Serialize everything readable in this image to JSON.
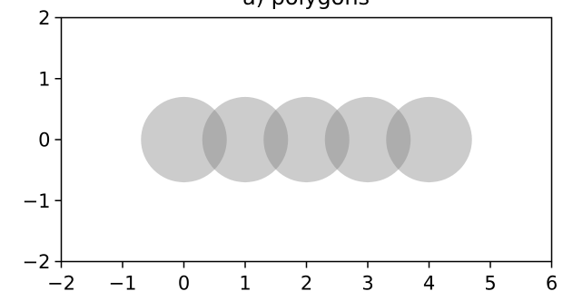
{
  "chart_data": {
    "type": "scatter",
    "title": "a) polygons",
    "xlabel": "",
    "ylabel": "",
    "xlim": [
      -2,
      6
    ],
    "ylim": [
      -2,
      2
    ],
    "x_ticks": [
      -2,
      -1,
      0,
      1,
      2,
      3,
      4,
      5,
      6
    ],
    "y_ticks": [
      -2,
      -1,
      0,
      1,
      2
    ],
    "x_tick_labels": [
      "−2",
      "−1",
      "0",
      "1",
      "2",
      "3",
      "4",
      "5",
      "6"
    ],
    "y_tick_labels": [
      "−2",
      "−1",
      "0",
      "1",
      "2"
    ],
    "grid": false,
    "series": [
      {
        "shape": "circle",
        "radius": 0.7,
        "color": "#808080",
        "alpha": 0.4,
        "x": [
          0,
          1,
          2,
          3,
          4
        ],
        "y": [
          0,
          0,
          0,
          0,
          0
        ]
      }
    ]
  }
}
